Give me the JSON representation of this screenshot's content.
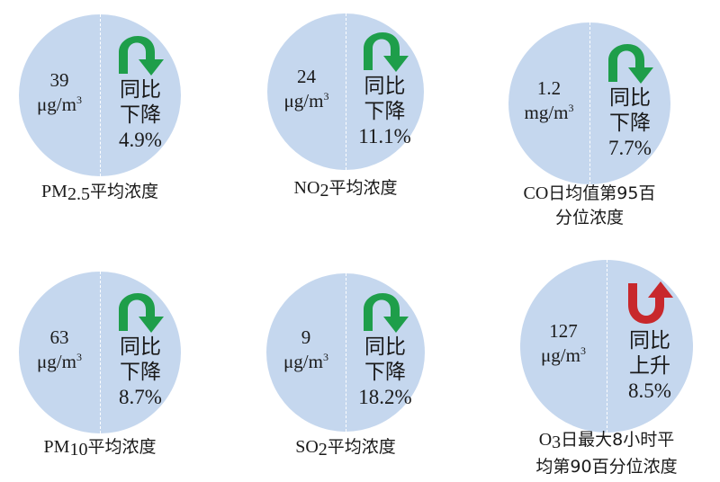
{
  "colors": {
    "circle": "#c5d7ee",
    "decrease": "#1e9e4a",
    "increase": "#c8282c"
  },
  "items": [
    {
      "value": "39",
      "unit": "μg/m",
      "unit_sup": "3",
      "compare": "同比",
      "trend": "下降",
      "direction": "down",
      "icon": "curved-arrow-down-icon",
      "change": "4.9%",
      "label_lines": [
        {
          "pre": "PM",
          "sub": "2.5",
          "post": "平均浓度"
        }
      ]
    },
    {
      "value": "24",
      "unit": "μg/m",
      "unit_sup": "3",
      "compare": "同比",
      "trend": "下降",
      "direction": "down",
      "icon": "curved-arrow-down-icon",
      "change": "11.1%",
      "label_lines": [
        {
          "pre": "NO",
          "sub": "2",
          "post": "平均浓度"
        }
      ]
    },
    {
      "value": "1.2",
      "unit": "mg/m",
      "unit_sup": "3",
      "compare": "同比",
      "trend": "下降",
      "direction": "down",
      "icon": "curved-arrow-down-icon",
      "change": "7.7%",
      "label_lines": [
        {
          "pre": "CO",
          "sub": "",
          "post": "日均值第95百"
        },
        {
          "pre": "",
          "sub": "",
          "post": "分位浓度"
        }
      ]
    },
    {
      "value": "63",
      "unit": "μg/m",
      "unit_sup": "3",
      "compare": "同比",
      "trend": "下降",
      "direction": "down",
      "icon": "curved-arrow-down-icon",
      "change": "8.7%",
      "label_lines": [
        {
          "pre": "PM",
          "sub": "10",
          "post": "平均浓度"
        }
      ]
    },
    {
      "value": "9",
      "unit": "μg/m",
      "unit_sup": "3",
      "compare": "同比",
      "trend": "下降",
      "direction": "down",
      "icon": "curved-arrow-down-icon",
      "change": "18.2%",
      "label_lines": [
        {
          "pre": "SO",
          "sub": "2",
          "post": "平均浓度"
        }
      ]
    },
    {
      "value": "127",
      "unit": "μg/m",
      "unit_sup": "3",
      "compare": "同比",
      "trend": "上升",
      "direction": "up",
      "icon": "curved-arrow-up-icon",
      "change": "8.5%",
      "label_lines": [
        {
          "pre": "O",
          "sub": "3",
          "post": "日最大8小时平"
        },
        {
          "pre": "",
          "sub": "",
          "post": "均第90百分位浓度"
        }
      ]
    }
  ]
}
